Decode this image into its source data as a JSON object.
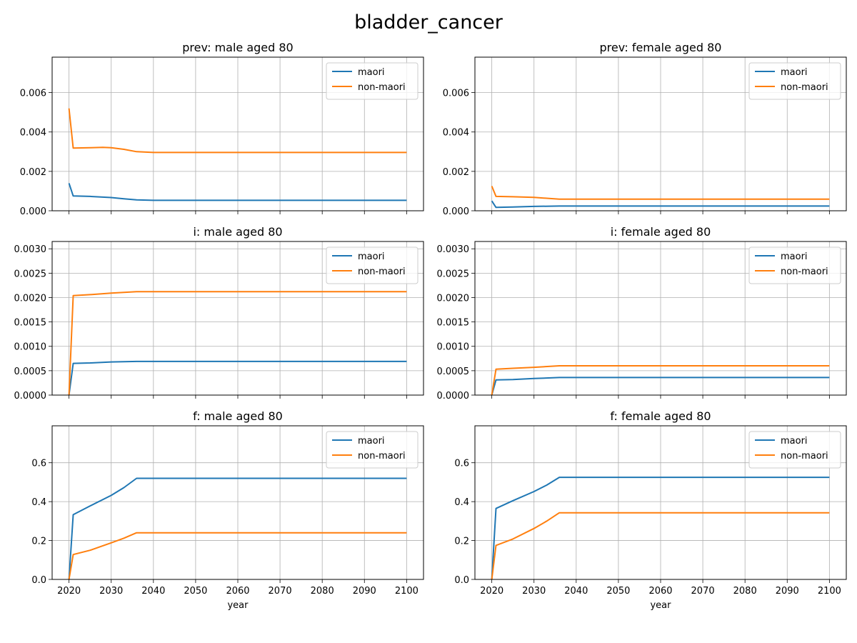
{
  "figure": {
    "suptitle": "bladder_cancer"
  },
  "colors": {
    "maori": "#1f77b4",
    "non-maori": "#ff7f0e",
    "grid": "#b0b0b0"
  },
  "chart_data": [
    {
      "type": "line",
      "title": "prev: male aged 80",
      "xlabel": "",
      "ylabel": "",
      "xlim": [
        2016,
        2104
      ],
      "ylim": [
        0,
        0.0078
      ],
      "xticks": [
        2020,
        2030,
        2040,
        2050,
        2060,
        2070,
        2080,
        2090,
        2100
      ],
      "show_xticklabels": false,
      "yticks": [
        0,
        0.002,
        0.004,
        0.006
      ],
      "yticklabels": [
        "0.000",
        "0.002",
        "0.004",
        "0.006"
      ],
      "grid": true,
      "legend": "upper right",
      "series": [
        {
          "name": "maori",
          "x": [
            2020,
            2021,
            2025,
            2030,
            2033,
            2036,
            2040,
            2100
          ],
          "y": [
            0.0014,
            0.00075,
            0.00073,
            0.00067,
            0.00061,
            0.00055,
            0.00053,
            0.00053
          ]
        },
        {
          "name": "non-maori",
          "x": [
            2020,
            2021,
            2025,
            2028,
            2030,
            2033,
            2036,
            2040,
            2100
          ],
          "y": [
            0.0052,
            0.00318,
            0.0032,
            0.00322,
            0.0032,
            0.00312,
            0.003,
            0.00296,
            0.00296
          ]
        }
      ]
    },
    {
      "type": "line",
      "title": "prev: female aged 80",
      "xlabel": "",
      "ylabel": "",
      "xlim": [
        2016,
        2104
      ],
      "ylim": [
        0,
        0.0078
      ],
      "xticks": [
        2020,
        2030,
        2040,
        2050,
        2060,
        2070,
        2080,
        2090,
        2100
      ],
      "show_xticklabels": false,
      "yticks": [
        0,
        0.002,
        0.004,
        0.006
      ],
      "yticklabels": [
        "0.000",
        "0.002",
        "0.004",
        "0.006"
      ],
      "grid": true,
      "legend": "upper right",
      "series": [
        {
          "name": "maori",
          "x": [
            2020,
            2021,
            2025,
            2030,
            2036,
            2100
          ],
          "y": [
            0.0005,
            0.00017,
            0.00019,
            0.00022,
            0.00024,
            0.00024
          ]
        },
        {
          "name": "non-maori",
          "x": [
            2020,
            2021,
            2025,
            2030,
            2036,
            2100
          ],
          "y": [
            0.00125,
            0.00073,
            0.00071,
            0.00068,
            0.00059,
            0.00059
          ]
        }
      ]
    },
    {
      "type": "line",
      "title": "i: male aged 80",
      "xlabel": "",
      "ylabel": "",
      "xlim": [
        2016,
        2104
      ],
      "ylim": [
        0,
        0.00315
      ],
      "xticks": [
        2020,
        2030,
        2040,
        2050,
        2060,
        2070,
        2080,
        2090,
        2100
      ],
      "show_xticklabels": false,
      "yticks": [
        0,
        0.0005,
        0.001,
        0.0015,
        0.002,
        0.0025,
        0.003
      ],
      "yticklabels": [
        "0.0000",
        "0.0005",
        "0.0010",
        "0.0015",
        "0.0020",
        "0.0025",
        "0.0030"
      ],
      "grid": true,
      "legend": "upper right",
      "series": [
        {
          "name": "maori",
          "x": [
            2020,
            2021,
            2025,
            2030,
            2036,
            2100
          ],
          "y": [
            0.0,
            0.00065,
            0.00066,
            0.00068,
            0.00069,
            0.00069
          ]
        },
        {
          "name": "non-maori",
          "x": [
            2020,
            2021,
            2025,
            2030,
            2036,
            2100
          ],
          "y": [
            0.0,
            0.00204,
            0.00206,
            0.00209,
            0.00212,
            0.00212
          ]
        }
      ]
    },
    {
      "type": "line",
      "title": "i: female aged 80",
      "xlabel": "",
      "ylabel": "",
      "xlim": [
        2016,
        2104
      ],
      "ylim": [
        0,
        0.00315
      ],
      "xticks": [
        2020,
        2030,
        2040,
        2050,
        2060,
        2070,
        2080,
        2090,
        2100
      ],
      "show_xticklabels": false,
      "yticks": [
        0,
        0.0005,
        0.001,
        0.0015,
        0.002,
        0.0025,
        0.003
      ],
      "yticklabels": [
        "0.0000",
        "0.0005",
        "0.0010",
        "0.0015",
        "0.0020",
        "0.0025",
        "0.0030"
      ],
      "grid": true,
      "legend": "upper right",
      "series": [
        {
          "name": "maori",
          "x": [
            2020,
            2021,
            2025,
            2030,
            2036,
            2100
          ],
          "y": [
            0.0,
            0.00031,
            0.00032,
            0.00034,
            0.00036,
            0.00036
          ]
        },
        {
          "name": "non-maori",
          "x": [
            2020,
            2021,
            2025,
            2030,
            2036,
            2100
          ],
          "y": [
            0.0,
            0.00053,
            0.00055,
            0.00057,
            0.0006,
            0.0006
          ]
        }
      ]
    },
    {
      "type": "line",
      "title": "f: male aged 80",
      "xlabel": "year",
      "ylabel": "",
      "xlim": [
        2016,
        2104
      ],
      "ylim": [
        0,
        0.79
      ],
      "xticks": [
        2020,
        2030,
        2040,
        2050,
        2060,
        2070,
        2080,
        2090,
        2100
      ],
      "show_xticklabels": true,
      "yticks": [
        0,
        0.2,
        0.4,
        0.6
      ],
      "yticklabels": [
        "0.0",
        "0.2",
        "0.4",
        "0.6"
      ],
      "grid": true,
      "legend": "upper right",
      "series": [
        {
          "name": "maori",
          "x": [
            2020,
            2021,
            2025,
            2030,
            2033,
            2036,
            2100
          ],
          "y": [
            0.0,
            0.333,
            0.378,
            0.432,
            0.472,
            0.52,
            0.52
          ]
        },
        {
          "name": "non-maori",
          "x": [
            2020,
            2021,
            2025,
            2030,
            2033,
            2036,
            2100
          ],
          "y": [
            0.0,
            0.128,
            0.15,
            0.188,
            0.212,
            0.24,
            0.24
          ]
        }
      ]
    },
    {
      "type": "line",
      "title": "f: female aged 80",
      "xlabel": "year",
      "ylabel": "",
      "xlim": [
        2016,
        2104
      ],
      "ylim": [
        0,
        0.79
      ],
      "xticks": [
        2020,
        2030,
        2040,
        2050,
        2060,
        2070,
        2080,
        2090,
        2100
      ],
      "show_xticklabels": true,
      "yticks": [
        0,
        0.2,
        0.4,
        0.6
      ],
      "yticklabels": [
        "0.0",
        "0.2",
        "0.4",
        "0.6"
      ],
      "grid": true,
      "legend": "upper right",
      "series": [
        {
          "name": "maori",
          "x": [
            2020,
            2021,
            2025,
            2030,
            2033,
            2036,
            2100
          ],
          "y": [
            0.0,
            0.365,
            0.405,
            0.452,
            0.485,
            0.525,
            0.525
          ]
        },
        {
          "name": "non-maori",
          "x": [
            2020,
            2021,
            2025,
            2030,
            2033,
            2036,
            2100
          ],
          "y": [
            0.0,
            0.175,
            0.208,
            0.262,
            0.3,
            0.343,
            0.343
          ]
        }
      ]
    }
  ]
}
